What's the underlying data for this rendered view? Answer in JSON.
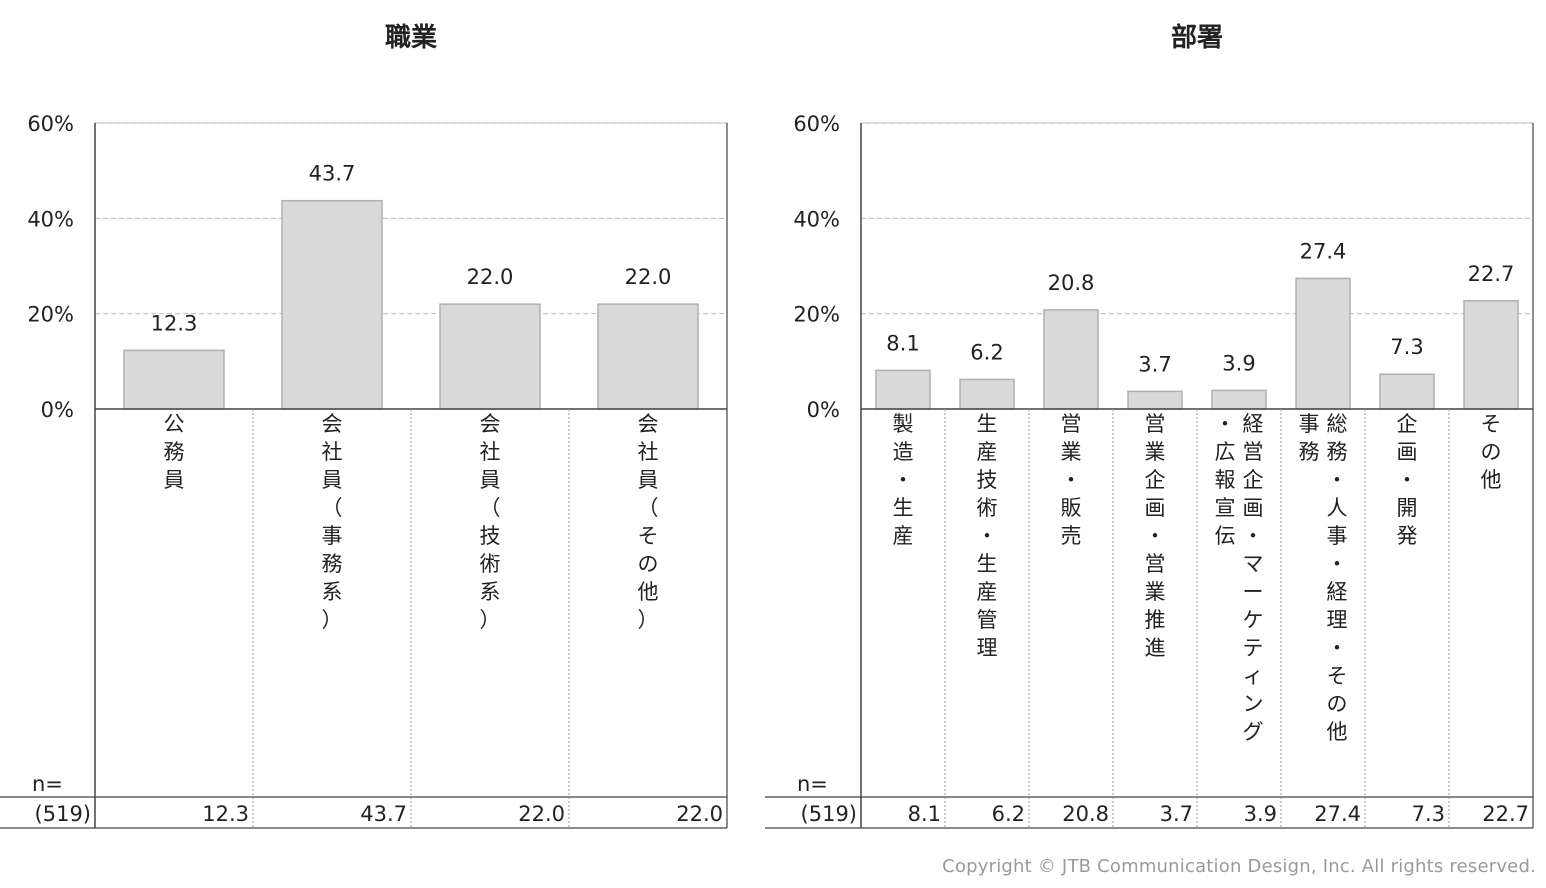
{
  "footer": "Copyright © JTB Communication Design, Inc. All rights reserved.",
  "chart_data": [
    {
      "type": "bar",
      "title": "職業",
      "ylim": [
        0,
        60
      ],
      "yticks": [
        "0%",
        "20%",
        "40%",
        "60%"
      ],
      "grid": true,
      "categories": [
        [
          "公",
          "務",
          "員"
        ],
        [
          "会",
          "社",
          "員",
          "（",
          "事",
          "務",
          "系",
          "）"
        ],
        [
          "会",
          "社",
          "員",
          "（",
          "技",
          "術",
          "系",
          "）"
        ],
        [
          "会",
          "社",
          "員",
          "（",
          "そ",
          "の",
          "他",
          "）"
        ]
      ],
      "values": [
        12.3,
        43.7,
        22.0,
        22.0
      ],
      "value_labels": [
        "12.3",
        "43.7",
        "22.0",
        "22.0"
      ],
      "table": {
        "header": "n=",
        "n": "(519)",
        "cells": [
          "12.3",
          "43.7",
          "22.0",
          "22.0"
        ]
      }
    },
    {
      "type": "bar",
      "title": "部署",
      "ylim": [
        0,
        60
      ],
      "yticks": [
        "0%",
        "20%",
        "40%",
        "60%"
      ],
      "grid": true,
      "categories": [
        [
          "製",
          "造",
          "・",
          "生",
          "産"
        ],
        [
          "生",
          "産",
          "技",
          "術",
          "・",
          "生",
          "産",
          "管",
          "理"
        ],
        [
          "営",
          "業",
          "・",
          "販",
          "売"
        ],
        [
          "営",
          "業",
          "企",
          "画",
          "・",
          "営",
          "業",
          "推",
          "進"
        ],
        [
          "経",
          "営",
          "企",
          "画",
          "・",
          "マ",
          "ー",
          "ケ",
          "テ",
          "ィ",
          "ン",
          "グ",
          "・",
          "広",
          "報",
          "宣",
          "伝"
        ],
        [
          "総",
          "務",
          "・",
          "人",
          "事",
          "・",
          "経",
          "理",
          "・",
          "そ",
          "の",
          "他",
          "事",
          "務"
        ],
        [
          "企",
          "画",
          "・",
          "開",
          "発"
        ],
        [
          "そ",
          "の",
          "他"
        ]
      ],
      "values": [
        8.1,
        6.2,
        20.8,
        3.7,
        3.9,
        27.4,
        7.3,
        22.7
      ],
      "value_labels": [
        "8.1",
        "6.2",
        "20.8",
        "3.7",
        "3.9",
        "27.4",
        "7.3",
        "22.7"
      ],
      "table": {
        "header": "n=",
        "n": "(519)",
        "cells": [
          "8.1",
          "6.2",
          "20.8",
          "3.7",
          "3.9",
          "27.4",
          "7.3",
          "22.7"
        ]
      }
    }
  ]
}
